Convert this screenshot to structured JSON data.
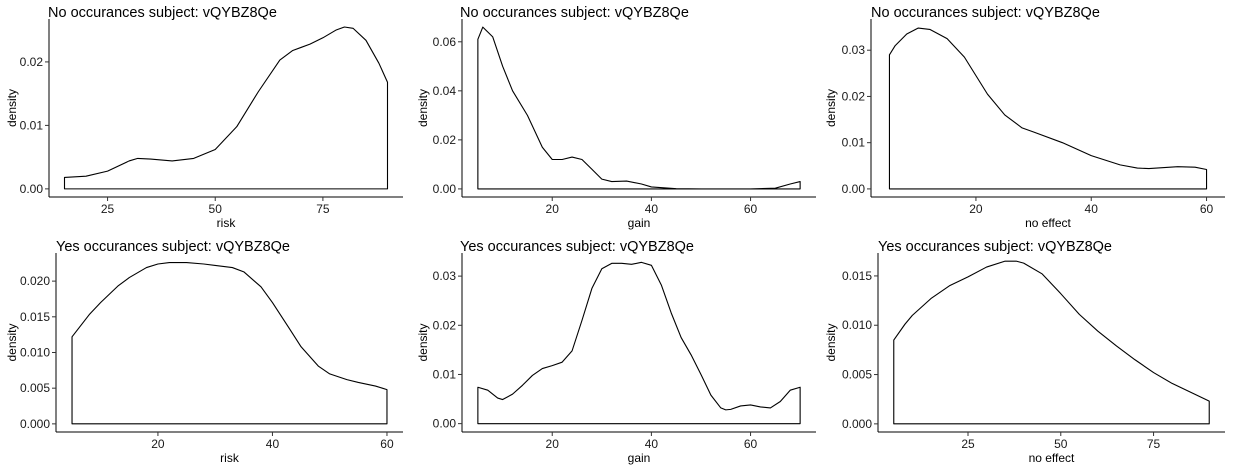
{
  "chart_data": [
    {
      "type": "area",
      "title": "No occurances subject:  vQYBZ8Qe",
      "xlabel": "risk",
      "ylabel": "density",
      "xlim": [
        11.4,
        93.6
      ],
      "ylim": [
        -0.00128,
        0.02676
      ],
      "xticks": [
        25,
        50,
        75
      ],
      "xtick_labels": [
        "25",
        "50",
        "75"
      ],
      "yticks": [
        0,
        0.01,
        0.02
      ],
      "ytick_labels": [
        "0.00",
        "0.01",
        "0.02"
      ],
      "x": [
        15,
        20,
        25,
        30,
        32,
        35,
        40,
        45,
        50,
        55,
        60,
        65,
        68,
        70,
        72,
        75,
        78,
        80,
        82,
        85,
        88,
        90
      ],
      "y": [
        0.0018,
        0.002,
        0.0028,
        0.0044,
        0.0048,
        0.0047,
        0.0044,
        0.0048,
        0.0062,
        0.0098,
        0.0153,
        0.0203,
        0.0218,
        0.0223,
        0.0228,
        0.0238,
        0.025,
        0.0255,
        0.0253,
        0.0234,
        0.0198,
        0.0168
      ]
    },
    {
      "type": "area",
      "title": "No occurances subject:  vQYBZ8Qe",
      "xlabel": "gain",
      "ylabel": "density",
      "xlim": [
        1.8,
        73.2
      ],
      "ylim": [
        -0.0033,
        0.0693
      ],
      "xticks": [
        20,
        40,
        60
      ],
      "xtick_labels": [
        "20",
        "40",
        "60"
      ],
      "yticks": [
        0,
        0.02,
        0.04,
        0.06
      ],
      "ytick_labels": [
        "0.00",
        "0.02",
        "0.04",
        "0.06"
      ],
      "x": [
        5,
        6,
        8,
        10,
        12,
        15,
        18,
        20,
        22,
        24,
        26,
        28,
        30,
        32,
        35,
        38,
        40,
        45,
        50,
        55,
        60,
        65,
        68,
        70
      ],
      "y": [
        0.061,
        0.066,
        0.062,
        0.05,
        0.04,
        0.03,
        0.017,
        0.012,
        0.012,
        0.013,
        0.012,
        0.008,
        0.004,
        0.003,
        0.0032,
        0.002,
        0.0008,
        0.0001,
        0.0,
        0.0,
        0.0,
        0.0003,
        0.002,
        0.003
      ]
    },
    {
      "type": "area",
      "title": "No occurances subject:  vQYBZ8Qe",
      "xlabel": "no effect",
      "ylabel": "density",
      "xlim": [
        1.8,
        63.2
      ],
      "ylim": [
        -0.00175,
        0.03675
      ],
      "xticks": [
        20,
        40,
        60
      ],
      "xtick_labels": [
        "20",
        "40",
        "60"
      ],
      "yticks": [
        0,
        0.01,
        0.02,
        0.03
      ],
      "ytick_labels": [
        "0.00",
        "0.01",
        "0.02",
        "0.03"
      ],
      "x": [
        5,
        6,
        8,
        10,
        12,
        15,
        18,
        20,
        22,
        25,
        28,
        30,
        35,
        40,
        45,
        48,
        50,
        55,
        58,
        60
      ],
      "y": [
        0.029,
        0.031,
        0.0335,
        0.0348,
        0.0345,
        0.0325,
        0.0285,
        0.0245,
        0.0205,
        0.016,
        0.0132,
        0.0123,
        0.01,
        0.0072,
        0.0052,
        0.0045,
        0.0044,
        0.0048,
        0.0047,
        0.0042
      ]
    },
    {
      "type": "area",
      "title": "Yes occurances subject:  vQYBZ8Qe",
      "xlabel": "risk",
      "ylabel": "density",
      "xlim": [
        2.2,
        62.8
      ],
      "ylim": [
        -0.00114,
        0.02394
      ],
      "xticks": [
        20,
        40,
        60
      ],
      "xtick_labels": [
        "20",
        "40",
        "60"
      ],
      "yticks": [
        0,
        0.005,
        0.01,
        0.015,
        0.02
      ],
      "ytick_labels": [
        "0.000",
        "0.005",
        "0.010",
        "0.015",
        "0.020"
      ],
      "x": [
        5,
        8,
        10,
        13,
        15,
        18,
        20,
        22,
        25,
        28,
        30,
        33,
        35,
        38,
        40,
        43,
        45,
        48,
        50,
        53,
        55,
        58,
        60
      ],
      "y": [
        0.0122,
        0.0153,
        0.017,
        0.0193,
        0.0205,
        0.0219,
        0.0224,
        0.0226,
        0.0226,
        0.0224,
        0.0222,
        0.0219,
        0.0213,
        0.0192,
        0.017,
        0.0133,
        0.0108,
        0.0081,
        0.007,
        0.0062,
        0.0058,
        0.0053,
        0.0048
      ]
    },
    {
      "type": "area",
      "title": "Yes occurances subject:  vQYBZ8Qe",
      "xlabel": "gain",
      "ylabel": "density",
      "xlim": [
        1.8,
        73.2
      ],
      "ylim": [
        -0.0017,
        0.0347
      ],
      "xticks": [
        20,
        40,
        60
      ],
      "xtick_labels": [
        "20",
        "40",
        "60"
      ],
      "yticks": [
        0,
        0.01,
        0.02,
        0.03
      ],
      "ytick_labels": [
        "0.00",
        "0.01",
        "0.02",
        "0.03"
      ],
      "x": [
        5,
        7,
        9,
        10,
        12,
        14,
        16,
        18,
        20,
        22,
        24,
        26,
        28,
        30,
        32,
        34,
        36,
        38,
        40,
        42,
        44,
        46,
        48,
        50,
        52,
        54,
        55,
        56,
        58,
        60,
        62,
        64,
        66,
        68,
        70
      ],
      "y": [
        0.0074,
        0.0068,
        0.0052,
        0.0049,
        0.006,
        0.0078,
        0.0098,
        0.0112,
        0.0118,
        0.0125,
        0.0148,
        0.021,
        0.0275,
        0.0315,
        0.0326,
        0.0326,
        0.0324,
        0.0328,
        0.0322,
        0.0282,
        0.0225,
        0.0175,
        0.014,
        0.01,
        0.0058,
        0.0032,
        0.0028,
        0.0029,
        0.0036,
        0.0038,
        0.0034,
        0.0032,
        0.0045,
        0.0068,
        0.0074
      ]
    },
    {
      "type": "area",
      "title": "Yes occurances subject:  vQYBZ8Qe",
      "xlabel": "no effect",
      "ylabel": "density",
      "xlim": [
        0.75,
        94.25
      ],
      "ylim": [
        -0.000825,
        0.017325
      ],
      "xticks": [
        25,
        50,
        75
      ],
      "xtick_labels": [
        "25",
        "50",
        "75"
      ],
      "yticks": [
        0,
        0.005,
        0.01,
        0.015
      ],
      "ytick_labels": [
        "0.000",
        "0.005",
        "0.010",
        "0.015"
      ],
      "x": [
        5,
        8,
        10,
        15,
        20,
        25,
        30,
        35,
        38,
        40,
        45,
        50,
        55,
        60,
        65,
        70,
        75,
        80,
        85,
        90
      ],
      "y": [
        0.0085,
        0.0101,
        0.011,
        0.0127,
        0.014,
        0.0149,
        0.0159,
        0.0165,
        0.0165,
        0.0163,
        0.0152,
        0.0132,
        0.0111,
        0.0094,
        0.0079,
        0.0065,
        0.0052,
        0.0041,
        0.0032,
        0.0023
      ]
    }
  ]
}
